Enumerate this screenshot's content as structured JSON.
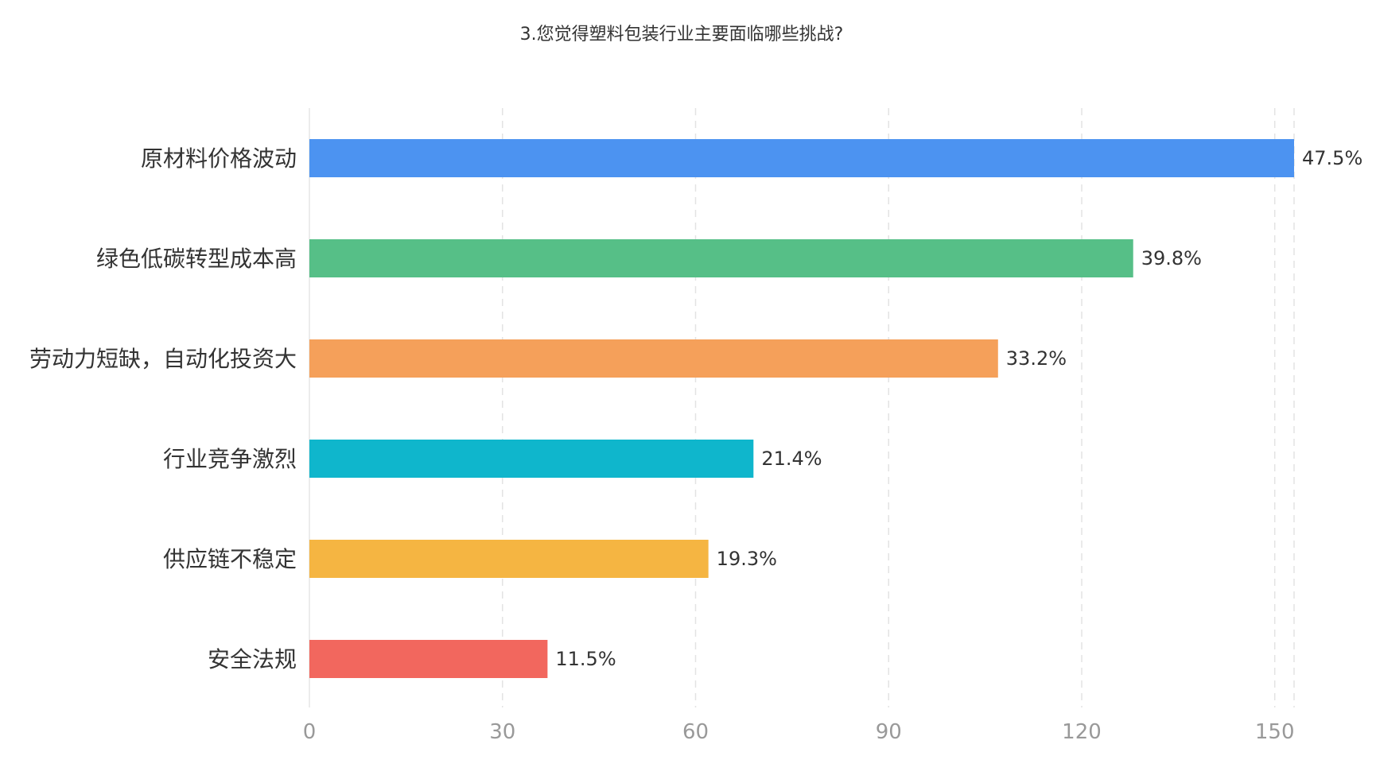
{
  "chart_data": {
    "type": "bar",
    "orientation": "horizontal",
    "title": "3.您觉得塑料包装行业主要面临哪些挑战?",
    "xlabel": "",
    "ylabel": "",
    "categories": [
      "原材料价格波动",
      "绿色低碳转型成本高",
      "劳动力短缺，自动化投资大",
      "行业竞争激烈",
      "供应链不稳定",
      "安全法规"
    ],
    "values": [
      153,
      128,
      107,
      69,
      62,
      37
    ],
    "data_labels": [
      "47.5%",
      "39.8%",
      "33.2%",
      "21.4%",
      "19.3%",
      "11.5%"
    ],
    "colors": [
      "#4c93f1",
      "#56bf87",
      "#f5a05a",
      "#0fb6cc",
      "#f5b542",
      "#f2675e"
    ],
    "xlim": [
      0,
      153
    ],
    "xticks": [
      0,
      30,
      60,
      90,
      120,
      150
    ],
    "tick_labels": [
      "0",
      "30",
      "60",
      "90",
      "120",
      "150"
    ],
    "grid": true,
    "legend": "none"
  }
}
